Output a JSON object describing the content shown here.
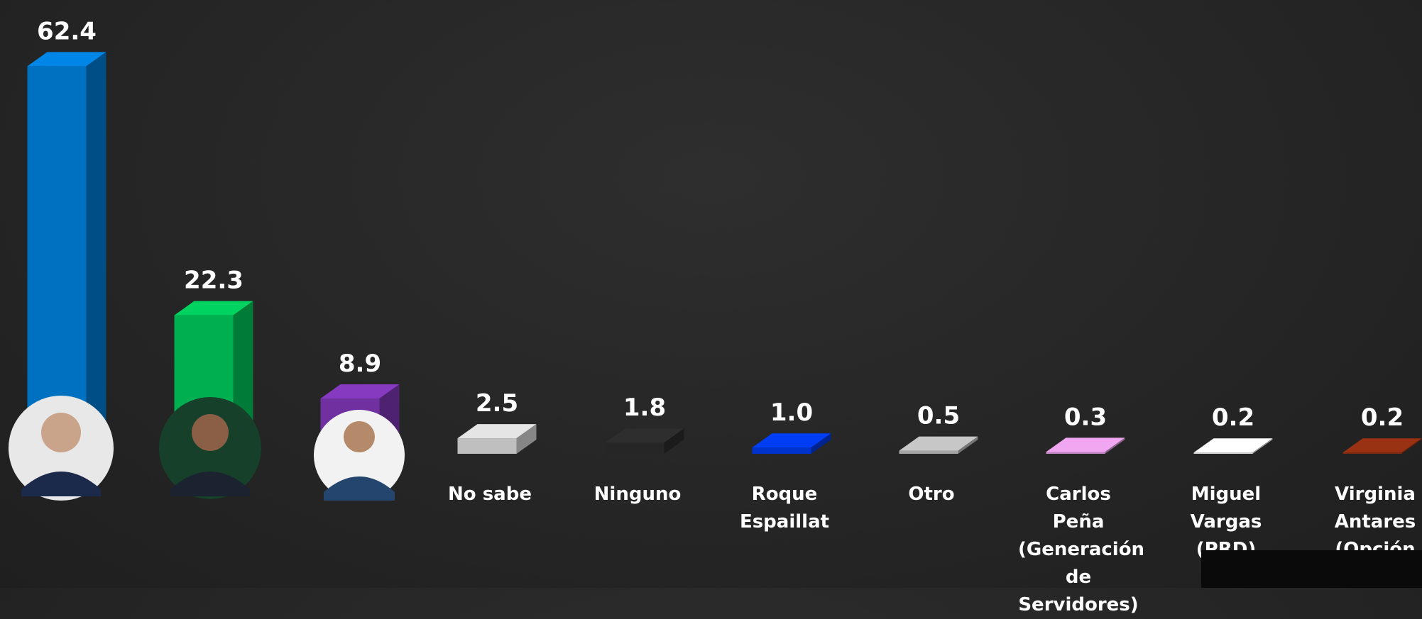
{
  "chart_data": {
    "type": "bar3d",
    "categories": [
      null,
      null,
      null,
      "No sabe",
      "Ninguno",
      "Roque Espaillat",
      "Otro",
      "Carlos Peña (Generación de Servidores)",
      "Miguel Vargas (PRD)",
      "Virginia Antares (Opción"
    ],
    "values": [
      62.4,
      22.3,
      8.9,
      2.5,
      1.8,
      1.0,
      0.5,
      0.3,
      0.2,
      0.2
    ],
    "value_labels": [
      "62.4",
      "22.3",
      "8.9",
      "2.5",
      "1.8",
      "1.0",
      "0.5",
      "0.3",
      "0.2",
      "0.2"
    ],
    "colors": [
      "#0070c0",
      "#00b050",
      "#7030a0",
      "#bfbfbf",
      "#262626",
      "#0033cc",
      "#a6a6a6",
      "#c88ac8",
      "#d9d9d9",
      "#7f2a10"
    ]
  }
}
